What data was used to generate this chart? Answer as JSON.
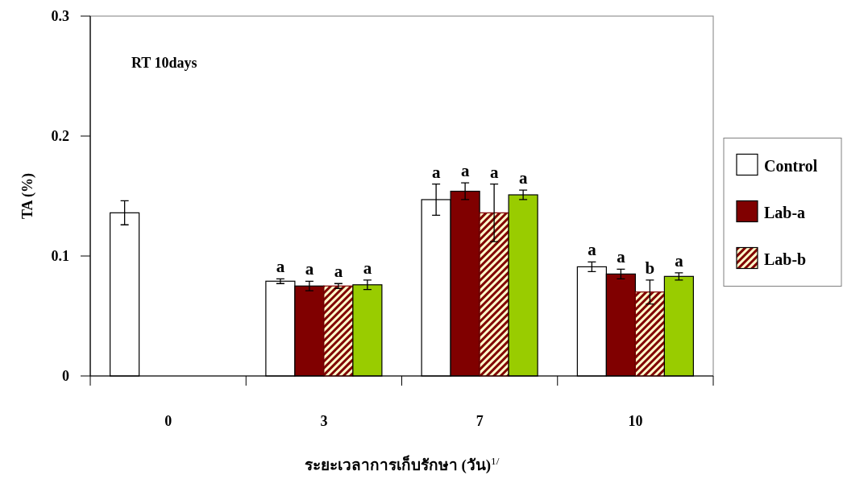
{
  "chart_data": {
    "type": "bar",
    "xlabel": "ระยะเวลาการเก็บรักษา (วัน)$^{1/}$",
    "ylabel": "TA (%)",
    "annotations": [
      "RT 10days"
    ],
    "categories": [
      "0",
      "3",
      "7",
      "10"
    ],
    "ylim": [
      0,
      0.3
    ],
    "yticks": [
      0,
      0.1,
      0.2,
      0.3
    ],
    "grid": false,
    "legend": "right",
    "series": [
      {
        "name": "Control",
        "color": "#ffffff",
        "values": [
          0.136,
          0.079,
          0.147,
          0.091
        ],
        "errors": [
          0.01,
          0.002,
          0.013,
          0.004
        ],
        "value_labels": [
          null,
          "a",
          "a",
          "a"
        ]
      },
      {
        "name": "Lab-a",
        "color": "#800000",
        "values": [
          null,
          0.075,
          0.154,
          0.085
        ],
        "errors": [
          null,
          0.004,
          0.007,
          0.004
        ],
        "value_labels": [
          null,
          "a",
          "a",
          "a"
        ]
      },
      {
        "name": "Lab-b",
        "color": "#800000",
        "values": [
          null,
          0.075,
          0.136,
          0.07
        ],
        "errors": [
          null,
          0.002,
          0.024,
          0.01
        ],
        "value_labels": [
          null,
          "a",
          "a",
          "b"
        ]
      },
      {
        "color": "#99cc00",
        "values": [
          null,
          0.076,
          0.151,
          0.083
        ],
        "errors": [
          null,
          0.004,
          0.004,
          0.003
        ],
        "value_labels": [
          null,
          "a",
          "a",
          "a"
        ]
      }
    ]
  }
}
